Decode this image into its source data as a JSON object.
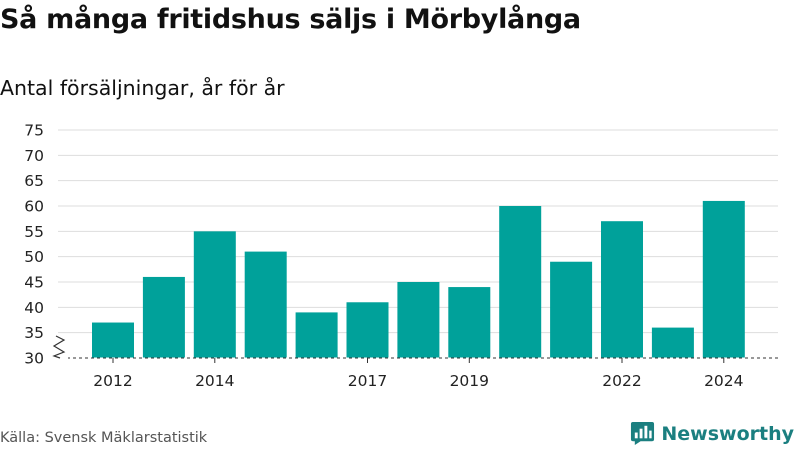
{
  "chart_data": {
    "type": "bar",
    "title": "Så många fritidshus säljs i Mörbylånga",
    "subtitle": "Antal försäljningar, år för år",
    "x": [
      2012,
      2013,
      2014,
      2015,
      2016,
      2017,
      2018,
      2019,
      2020,
      2021,
      2022,
      2023,
      2024
    ],
    "values": [
      37,
      46,
      55,
      51,
      39,
      41,
      45,
      44,
      60,
      49,
      57,
      36,
      61
    ],
    "x_tick_labels": [
      "2012",
      "2014",
      "2017",
      "2019",
      "2022",
      "2024"
    ],
    "x_tick_values": [
      2012,
      2014,
      2017,
      2019,
      2022,
      2024
    ],
    "y_ticks": [
      30,
      35,
      40,
      45,
      50,
      55,
      60,
      65,
      70,
      75
    ],
    "ylim": [
      30,
      75
    ],
    "y_axis_break": true,
    "grid": true,
    "bar_color": "#00a19a"
  },
  "source": "Källa: Svensk Mäklarstatistik",
  "brand": {
    "name": "Newsworthy",
    "color": "#1b7f80",
    "icon": "newsworthy-logo-icon"
  }
}
